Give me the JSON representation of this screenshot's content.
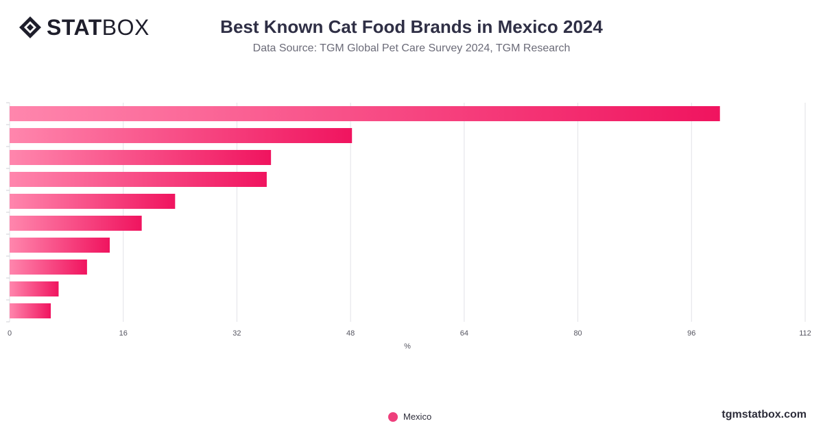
{
  "header": {
    "logo_bold": "STAT",
    "logo_light": "BOX",
    "title": "Best Known Cat Food Brands in Mexico 2024",
    "subtitle": "Data Source: TGM Global Pet Care Survey 2024, TGM Research"
  },
  "footer": {
    "site": "tgmstatbox.com"
  },
  "colors": {
    "bar_start": "#ff86ad",
    "bar_end": "#f0145f",
    "grid": "#e1e1e6"
  },
  "chart_data": {
    "type": "bar",
    "orientation": "horizontal",
    "categories": [
      "",
      "",
      "",
      "",
      "",
      "",
      "",
      "",
      "",
      ""
    ],
    "series": [
      {
        "name": "Mexico",
        "values": [
          100,
          48.2,
          36.8,
          36.2,
          23.3,
          18.6,
          14.1,
          10.9,
          6.9,
          5.8
        ]
      }
    ],
    "xlabel": "%",
    "xlim": [
      0,
      112
    ],
    "xticks": [
      0,
      16,
      32,
      48,
      64,
      80,
      96,
      112
    ],
    "grid": true,
    "legend": "bottom-center"
  }
}
